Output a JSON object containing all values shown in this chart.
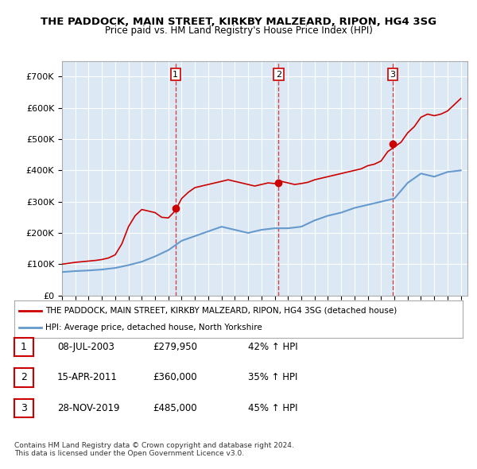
{
  "title": "THE PADDOCK, MAIN STREET, KIRKBY MALZEARD, RIPON, HG4 3SG",
  "subtitle": "Price paid vs. HM Land Registry's House Price Index (HPI)",
  "background_color": "#dce9f5",
  "plot_bg_color": "#dce9f5",
  "ylabel": "",
  "xlabel": "",
  "ylim": [
    0,
    750000
  ],
  "yticks": [
    0,
    100000,
    200000,
    300000,
    400000,
    500000,
    600000,
    700000
  ],
  "ytick_labels": [
    "£0",
    "£100K",
    "£200K",
    "£300K",
    "£400K",
    "£500K",
    "£600K",
    "£700K"
  ],
  "sale_dates": [
    "2003-07-08",
    "2011-04-15",
    "2019-11-28"
  ],
  "sale_prices": [
    279950,
    360000,
    485000
  ],
  "sale_labels": [
    "1",
    "2",
    "3"
  ],
  "sale_pct": [
    "42% ↑ HPI",
    "35% ↑ HPI",
    "45% ↑ HPI"
  ],
  "sale_date_labels": [
    "08-JUL-2003",
    "15-APR-2011",
    "28-NOV-2019"
  ],
  "sale_price_labels": [
    "£279,950",
    "£360,000",
    "£485,000"
  ],
  "red_line_color": "#cc0000",
  "blue_line_color": "#6699cc",
  "legend_label_red": "THE PADDOCK, MAIN STREET, KIRKBY MALZEARD, RIPON, HG4 3SG (detached house)",
  "legend_label_blue": "HPI: Average price, detached house, North Yorkshire",
  "footnote": "Contains HM Land Registry data © Crown copyright and database right 2024.\nThis data is licensed under the Open Government Licence v3.0.",
  "hpi_years": [
    1995,
    1996,
    1997,
    1998,
    1999,
    2000,
    2001,
    2002,
    2003,
    2004,
    2005,
    2006,
    2007,
    2008,
    2009,
    2010,
    2011,
    2012,
    2013,
    2014,
    2015,
    2016,
    2017,
    2018,
    2019,
    2020,
    2021,
    2022,
    2023,
    2024,
    2025
  ],
  "hpi_values": [
    75000,
    78000,
    80000,
    83000,
    88000,
    97000,
    108000,
    125000,
    145000,
    175000,
    190000,
    205000,
    220000,
    210000,
    200000,
    210000,
    215000,
    215000,
    220000,
    240000,
    255000,
    265000,
    280000,
    290000,
    300000,
    310000,
    360000,
    390000,
    380000,
    395000,
    400000
  ],
  "red_years_x": [
    1995.0,
    1995.5,
    1996.0,
    1996.5,
    1997.0,
    1997.5,
    1998.0,
    1998.5,
    1999.0,
    1999.5,
    2000.0,
    2000.5,
    2001.0,
    2001.5,
    2002.0,
    2002.5,
    2003.0,
    2003.5,
    2004.0,
    2004.5,
    2005.0,
    2005.5,
    2006.0,
    2006.5,
    2007.0,
    2007.5,
    2008.0,
    2008.5,
    2009.0,
    2009.5,
    2010.0,
    2010.5,
    2011.0,
    2011.5,
    2012.0,
    2012.5,
    2013.0,
    2013.5,
    2014.0,
    2014.5,
    2015.0,
    2015.5,
    2016.0,
    2016.5,
    2017.0,
    2017.5,
    2018.0,
    2018.5,
    2019.0,
    2019.5,
    2020.0,
    2020.5,
    2021.0,
    2021.5,
    2022.0,
    2022.5,
    2023.0,
    2023.5,
    2024.0,
    2024.5,
    2025.0
  ],
  "red_values_y": [
    100000,
    103000,
    106000,
    108000,
    110000,
    112000,
    115000,
    120000,
    130000,
    165000,
    220000,
    255000,
    275000,
    270000,
    265000,
    250000,
    248000,
    270000,
    310000,
    330000,
    345000,
    350000,
    355000,
    360000,
    365000,
    370000,
    365000,
    360000,
    355000,
    350000,
    355000,
    360000,
    358000,
    365000,
    360000,
    355000,
    358000,
    362000,
    370000,
    375000,
    380000,
    385000,
    390000,
    395000,
    400000,
    405000,
    415000,
    420000,
    430000,
    460000,
    475000,
    490000,
    520000,
    540000,
    570000,
    580000,
    575000,
    580000,
    590000,
    610000,
    630000
  ]
}
